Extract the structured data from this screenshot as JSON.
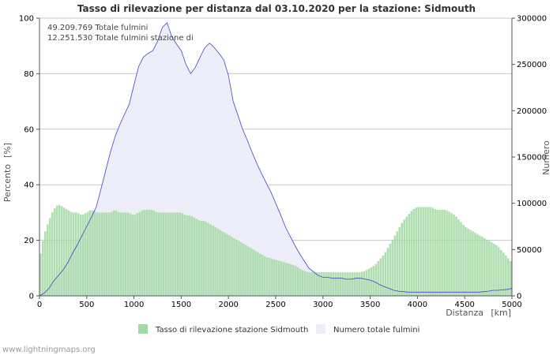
{
  "chart_data": {
    "type": "bar",
    "title": "Tasso di rilevazione per distanza dal 03.10.2020 per la stazione: Sidmouth",
    "xlabel": "Distanza",
    "xunit": "[km]",
    "ylabel_left": "Percento",
    "ylabel_left_unit": "[%]",
    "ylabel_right": "Numero",
    "xlim": [
      0,
      5000
    ],
    "ylim_left": [
      0,
      100
    ],
    "ylim_right": [
      0,
      300000
    ],
    "x_ticks": [
      "0",
      "500",
      "1000",
      "1500",
      "2000",
      "2500",
      "3000",
      "3500",
      "4000",
      "4500",
      "5000"
    ],
    "y_left_ticks": [
      "0",
      "20",
      "40",
      "60",
      "80",
      "100"
    ],
    "y_right_ticks": [
      "0",
      "50000",
      "100000",
      "150000",
      "200000",
      "250000",
      "300000"
    ],
    "grid": true,
    "annotations": [
      "49.209.769 Totale fulmini",
      "12.251.530 Totale fulmini stazione di"
    ],
    "series": [
      {
        "name": "Tasso di rilevazione stazione Sidmouth",
        "axis": "left",
        "kind": "bar",
        "color": "#a3d9a3",
        "points": [
          [
            0,
            13
          ],
          [
            50,
            22
          ],
          [
            100,
            27
          ],
          [
            150,
            31
          ],
          [
            200,
            33
          ],
          [
            250,
            32
          ],
          [
            300,
            31
          ],
          [
            350,
            30
          ],
          [
            400,
            30
          ],
          [
            450,
            29
          ],
          [
            500,
            30
          ],
          [
            550,
            31
          ],
          [
            600,
            30
          ],
          [
            650,
            30
          ],
          [
            700,
            30
          ],
          [
            750,
            30
          ],
          [
            800,
            31
          ],
          [
            850,
            30
          ],
          [
            900,
            30
          ],
          [
            950,
            30
          ],
          [
            1000,
            29
          ],
          [
            1050,
            30
          ],
          [
            1100,
            31
          ],
          [
            1150,
            31
          ],
          [
            1200,
            31
          ],
          [
            1250,
            30
          ],
          [
            1300,
            30
          ],
          [
            1350,
            30
          ],
          [
            1400,
            30
          ],
          [
            1450,
            30
          ],
          [
            1500,
            30
          ],
          [
            1550,
            29
          ],
          [
            1600,
            29
          ],
          [
            1650,
            28
          ],
          [
            1700,
            27
          ],
          [
            1750,
            27
          ],
          [
            1800,
            26
          ],
          [
            1850,
            25
          ],
          [
            1900,
            24
          ],
          [
            1950,
            23
          ],
          [
            2000,
            22
          ],
          [
            2050,
            21
          ],
          [
            2100,
            20
          ],
          [
            2150,
            19
          ],
          [
            2200,
            18
          ],
          [
            2250,
            17
          ],
          [
            2300,
            16
          ],
          [
            2350,
            15
          ],
          [
            2400,
            14
          ],
          [
            2450,
            13.5
          ],
          [
            2500,
            13
          ],
          [
            2550,
            12.5
          ],
          [
            2600,
            12
          ],
          [
            2650,
            11.5
          ],
          [
            2700,
            11
          ],
          [
            2750,
            10
          ],
          [
            2800,
            9
          ],
          [
            2850,
            8.5
          ],
          [
            2900,
            8.5
          ],
          [
            2950,
            8.5
          ],
          [
            3000,
            8.5
          ],
          [
            3050,
            8.5
          ],
          [
            3100,
            8.5
          ],
          [
            3150,
            8.5
          ],
          [
            3200,
            8.5
          ],
          [
            3250,
            8.5
          ],
          [
            3300,
            8.5
          ],
          [
            3350,
            8.5
          ],
          [
            3400,
            8.5
          ],
          [
            3450,
            9
          ],
          [
            3500,
            10
          ],
          [
            3550,
            11
          ],
          [
            3600,
            13
          ],
          [
            3650,
            15
          ],
          [
            3700,
            18
          ],
          [
            3750,
            21
          ],
          [
            3800,
            24
          ],
          [
            3850,
            27
          ],
          [
            3900,
            29
          ],
          [
            3950,
            31
          ],
          [
            4000,
            32
          ],
          [
            4050,
            32
          ],
          [
            4100,
            32
          ],
          [
            4150,
            32
          ],
          [
            4200,
            31
          ],
          [
            4250,
            31
          ],
          [
            4300,
            31
          ],
          [
            4350,
            30
          ],
          [
            4400,
            29
          ],
          [
            4450,
            27
          ],
          [
            4500,
            25
          ],
          [
            4550,
            24
          ],
          [
            4600,
            23
          ],
          [
            4650,
            22
          ],
          [
            4700,
            21
          ],
          [
            4750,
            20
          ],
          [
            4800,
            19
          ],
          [
            4850,
            18
          ],
          [
            4900,
            16
          ],
          [
            4950,
            14
          ],
          [
            5000,
            12
          ]
        ]
      },
      {
        "name": "Numero totale fulmini",
        "axis": "right",
        "kind": "area",
        "color": "#eeeefa",
        "line_color": "#4444cc",
        "points": [
          [
            0,
            0
          ],
          [
            50,
            3000
          ],
          [
            100,
            8000
          ],
          [
            150,
            16000
          ],
          [
            200,
            22000
          ],
          [
            250,
            28000
          ],
          [
            300,
            36000
          ],
          [
            350,
            46000
          ],
          [
            400,
            55000
          ],
          [
            450,
            65000
          ],
          [
            500,
            75000
          ],
          [
            550,
            85000
          ],
          [
            600,
            96000
          ],
          [
            650,
            115000
          ],
          [
            700,
            135000
          ],
          [
            750,
            155000
          ],
          [
            800,
            172000
          ],
          [
            850,
            185000
          ],
          [
            900,
            196000
          ],
          [
            950,
            207000
          ],
          [
            1000,
            228000
          ],
          [
            1050,
            248000
          ],
          [
            1100,
            258000
          ],
          [
            1150,
            262000
          ],
          [
            1200,
            265000
          ],
          [
            1250,
            275000
          ],
          [
            1300,
            290000
          ],
          [
            1350,
            295000
          ],
          [
            1400,
            280000
          ],
          [
            1450,
            272000
          ],
          [
            1500,
            265000
          ],
          [
            1550,
            250000
          ],
          [
            1600,
            240000
          ],
          [
            1650,
            247000
          ],
          [
            1700,
            258000
          ],
          [
            1750,
            268000
          ],
          [
            1800,
            273000
          ],
          [
            1850,
            268000
          ],
          [
            1900,
            262000
          ],
          [
            1950,
            255000
          ],
          [
            2000,
            238000
          ],
          [
            2050,
            210000
          ],
          [
            2100,
            195000
          ],
          [
            2150,
            180000
          ],
          [
            2200,
            168000
          ],
          [
            2250,
            155000
          ],
          [
            2300,
            143000
          ],
          [
            2350,
            132000
          ],
          [
            2400,
            122000
          ],
          [
            2450,
            112000
          ],
          [
            2500,
            100000
          ],
          [
            2550,
            88000
          ],
          [
            2600,
            75000
          ],
          [
            2650,
            65000
          ],
          [
            2700,
            55000
          ],
          [
            2750,
            46000
          ],
          [
            2800,
            38000
          ],
          [
            2850,
            30000
          ],
          [
            2900,
            26000
          ],
          [
            2950,
            22000
          ],
          [
            3000,
            20000
          ],
          [
            3050,
            20000
          ],
          [
            3100,
            19000
          ],
          [
            3150,
            19000
          ],
          [
            3200,
            19000
          ],
          [
            3250,
            18000
          ],
          [
            3300,
            18000
          ],
          [
            3350,
            19000
          ],
          [
            3400,
            19000
          ],
          [
            3450,
            18000
          ],
          [
            3500,
            17000
          ],
          [
            3550,
            15000
          ],
          [
            3600,
            12000
          ],
          [
            3650,
            10000
          ],
          [
            3700,
            8000
          ],
          [
            3750,
            6000
          ],
          [
            3800,
            5000
          ],
          [
            3850,
            4500
          ],
          [
            3900,
            4000
          ],
          [
            3950,
            4000
          ],
          [
            4000,
            4000
          ],
          [
            4050,
            4000
          ],
          [
            4100,
            4000
          ],
          [
            4150,
            4000
          ],
          [
            4200,
            4000
          ],
          [
            4250,
            4000
          ],
          [
            4300,
            4000
          ],
          [
            4350,
            4000
          ],
          [
            4400,
            4000
          ],
          [
            4450,
            4000
          ],
          [
            4500,
            4000
          ],
          [
            4550,
            4000
          ],
          [
            4600,
            4000
          ],
          [
            4650,
            4000
          ],
          [
            4700,
            4500
          ],
          [
            4750,
            5000
          ],
          [
            4800,
            6000
          ],
          [
            4850,
            6000
          ],
          [
            4900,
            6500
          ],
          [
            4950,
            7000
          ],
          [
            5000,
            8000
          ]
        ]
      }
    ]
  },
  "footer": "www.lightningmaps.org",
  "colors": {
    "grid": "#c8c8c8",
    "axis": "#555555",
    "bar": "#a3d9a3",
    "area": "#eeeefa",
    "line": "#4444cc"
  }
}
